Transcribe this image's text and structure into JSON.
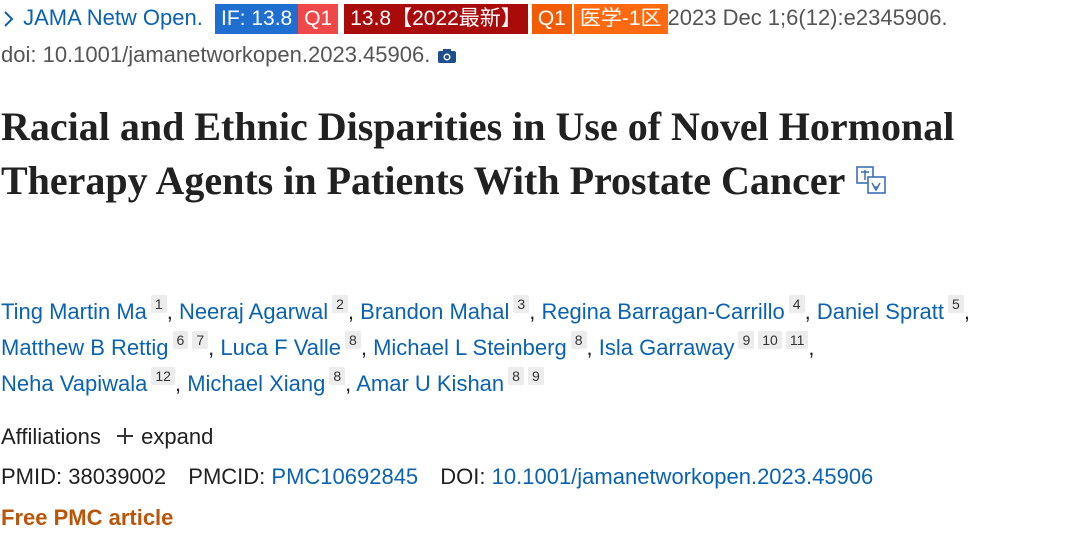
{
  "citation": {
    "journal": "JAMA Netw Open.",
    "badges": [
      "IF: 13.8",
      "Q1",
      "13.8【2022最新】",
      "Q1",
      "医学-1区"
    ],
    "date_volume": "2023 Dec 1;6(12):e2345906.",
    "doi": "doi: 10.1001/jamanetworkopen.2023.45906."
  },
  "title": "Racial and Ethnic Disparities in Use of Novel Hormonal Therapy Agents in Patients With Prostate Cancer",
  "author_separator": ",",
  "author_lines": [
    [
      {
        "name": "Ting Martin Ma",
        "affiliations": [
          "1"
        ]
      },
      {
        "name": "Neeraj Agarwal",
        "affiliations": [
          "2"
        ]
      },
      {
        "name": "Brandon Mahal",
        "affiliations": [
          "3"
        ]
      },
      {
        "name": "Regina Barragan-Carrillo",
        "affiliations": [
          "4"
        ]
      },
      {
        "name": "Daniel Spratt",
        "affiliations": [
          "5"
        ]
      }
    ],
    [
      {
        "name": "Matthew B Rettig",
        "affiliations": [
          "6",
          "7"
        ]
      },
      {
        "name": "Luca F Valle",
        "affiliations": [
          "8"
        ]
      },
      {
        "name": "Michael L Steinberg",
        "affiliations": [
          "8"
        ]
      },
      {
        "name": "Isla Garraway",
        "affiliations": [
          "9",
          "10",
          "11"
        ]
      }
    ],
    [
      {
        "name": "Neha Vapiwala",
        "affiliations": [
          "12"
        ]
      },
      {
        "name": "Michael Xiang",
        "affiliations": [
          "8"
        ]
      },
      {
        "name": "Amar U Kishan",
        "affiliations": [
          "8",
          "9"
        ]
      }
    ]
  ],
  "affiliations": {
    "label": "Affiliations",
    "toggle": "expand"
  },
  "identifiers": {
    "pmid_label": "PMID:",
    "pmid": "38039002",
    "pmcid_label": "PMCID:",
    "pmcid": "PMC10692845",
    "doi_label": "DOI:",
    "doi": "10.1001/jamanetworkopen.2023.45906"
  },
  "free_article": "Free PMC article"
}
